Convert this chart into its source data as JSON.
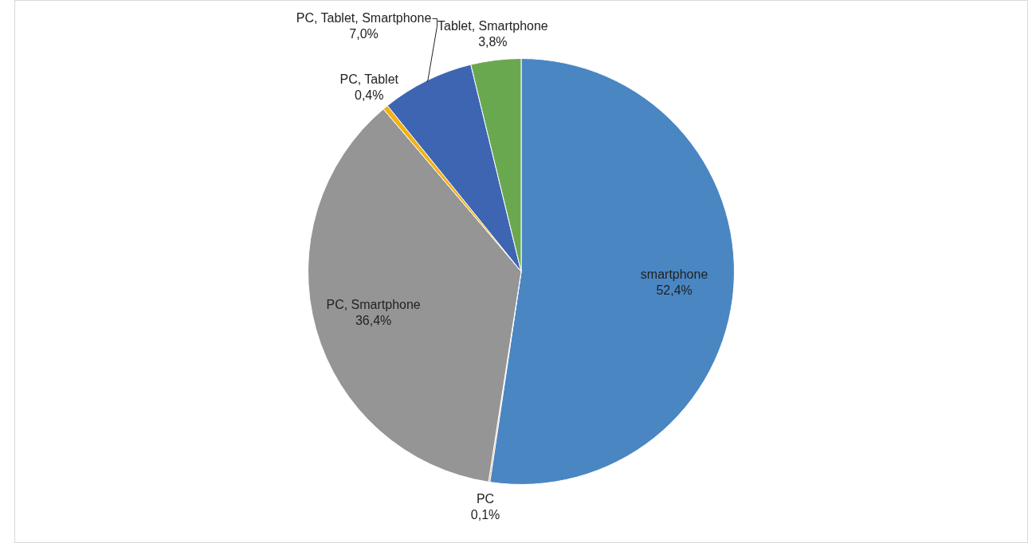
{
  "chart_data": {
    "type": "pie",
    "categories": [
      "smartphone",
      "PC",
      "PC, Smartphone",
      "PC, Tablet",
      "PC, Tablet, Smartphone",
      "Tablet, Smartphone"
    ],
    "values": [
      52.4,
      0.1,
      36.4,
      0.4,
      7.0,
      3.8
    ],
    "colors": [
      "#4a86c2",
      "#ed7d31",
      "#959595",
      "#f2b212",
      "#3e65b2",
      "#6aa84f"
    ],
    "value_labels": [
      "52,4%",
      "0,1%",
      "36,4%",
      "0,4%",
      "7,0%",
      "3,8%"
    ],
    "legend": false
  }
}
